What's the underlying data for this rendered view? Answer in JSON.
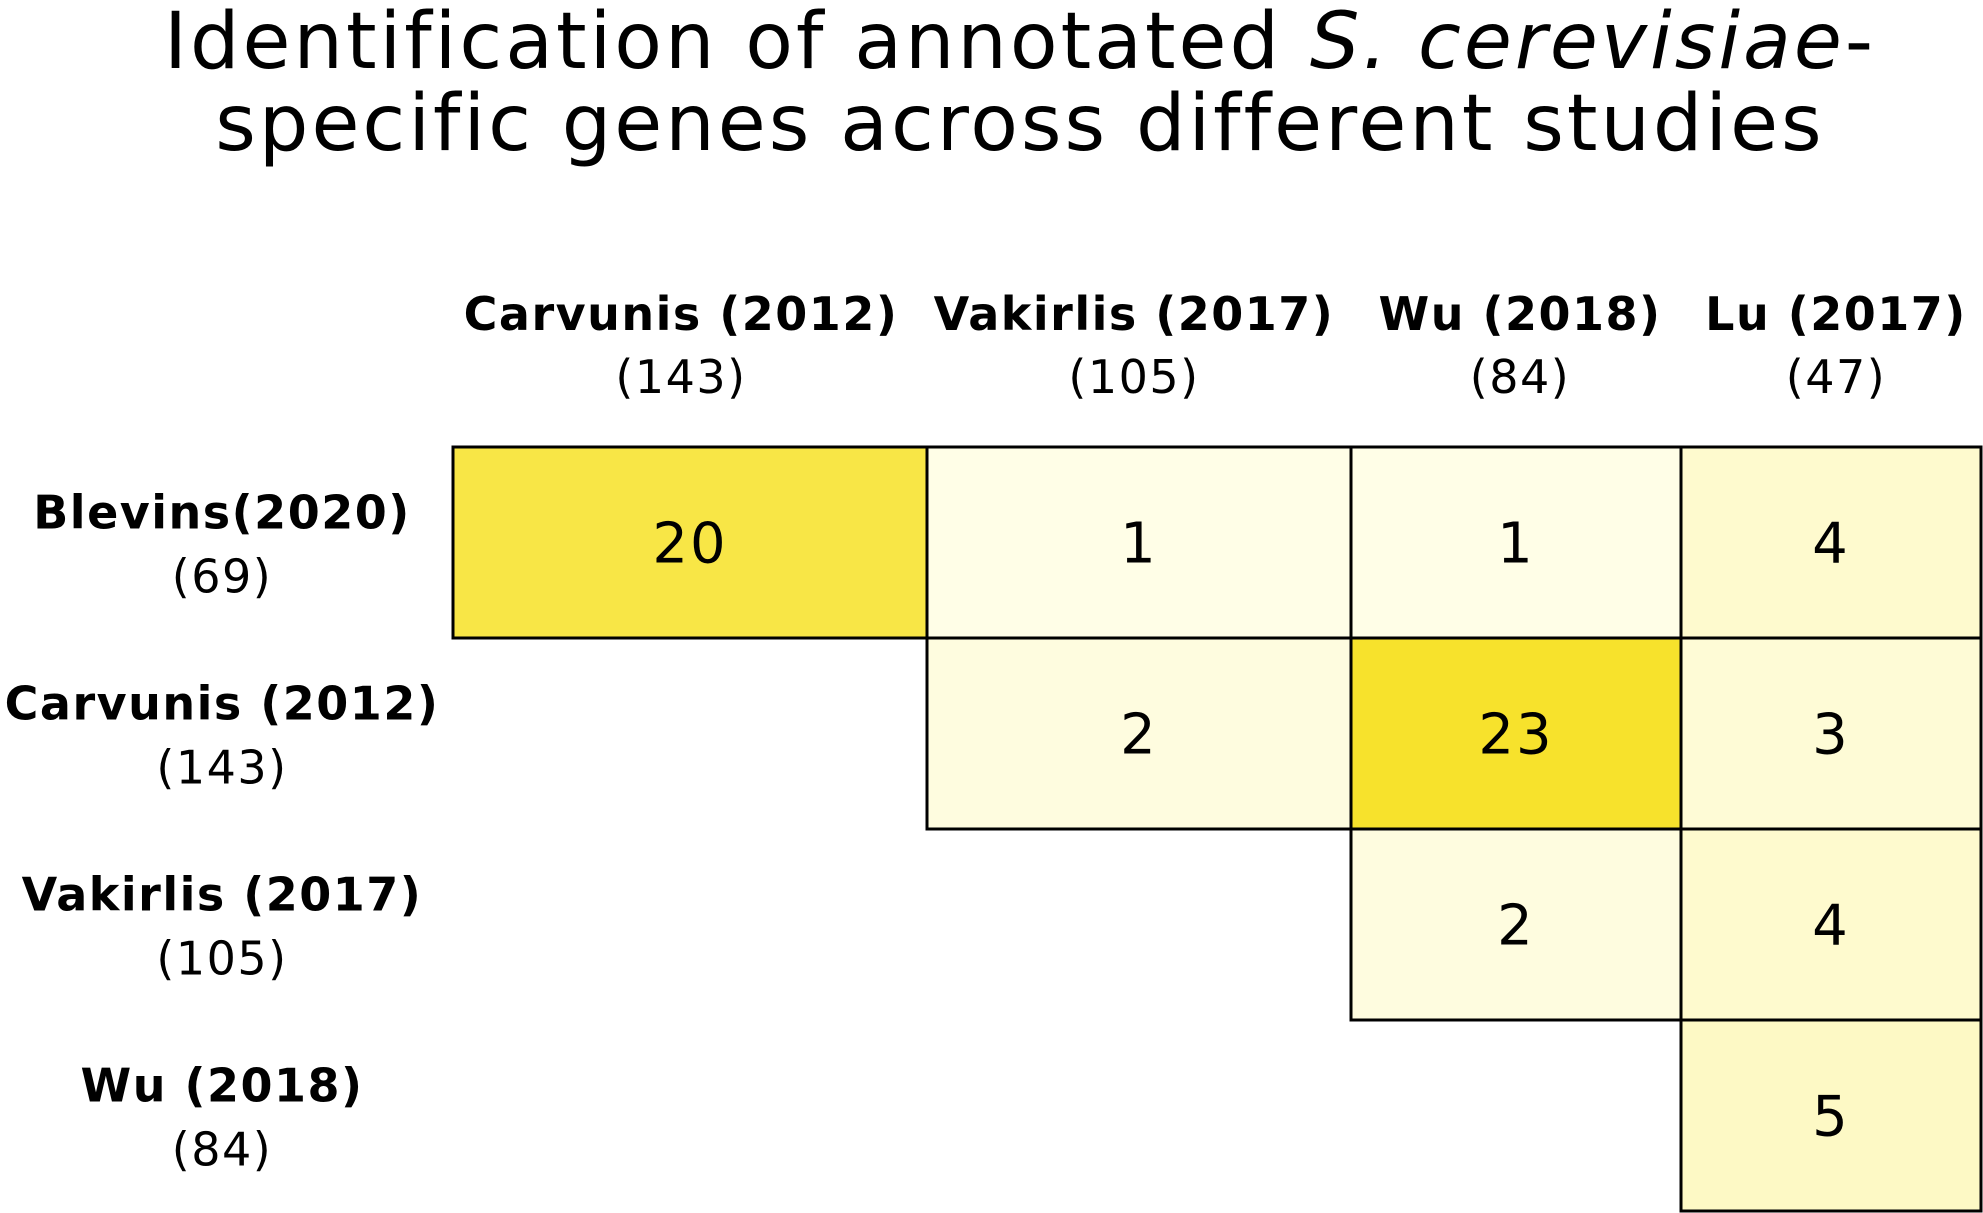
{
  "chart_data": {
    "type": "heatmap",
    "title": {
      "line1_prefix": "Identification of annotated ",
      "line1_italic": "S. cerevisiae",
      "line1_suffix": "-",
      "line2": "specific genes across different studies"
    },
    "columns": [
      {
        "name": "Carvunis (2012)",
        "count": "(143)"
      },
      {
        "name": "Vakirlis (2017)",
        "count": "(105)"
      },
      {
        "name": "Wu (2018)",
        "count": "(84)"
      },
      {
        "name": "Lu (2017)",
        "count": "(47)"
      }
    ],
    "rows": [
      {
        "name": "Blevins(2020)",
        "count": "(69)"
      },
      {
        "name": "Carvunis (2012)",
        "count": "(143)"
      },
      {
        "name": "Vakirlis (2017)",
        "count": "(105)"
      },
      {
        "name": "Wu (2018)",
        "count": "(84)"
      }
    ],
    "values": [
      [
        20,
        1,
        1,
        4
      ],
      [
        null,
        2,
        23,
        3
      ],
      [
        null,
        null,
        2,
        4
      ],
      [
        null,
        null,
        null,
        5
      ]
    ],
    "color_scale": {
      "min": 0,
      "max": 23,
      "low": "#fffff0",
      "high": "#f7e22c"
    },
    "colorbar": false,
    "grid_color": "#000000"
  }
}
